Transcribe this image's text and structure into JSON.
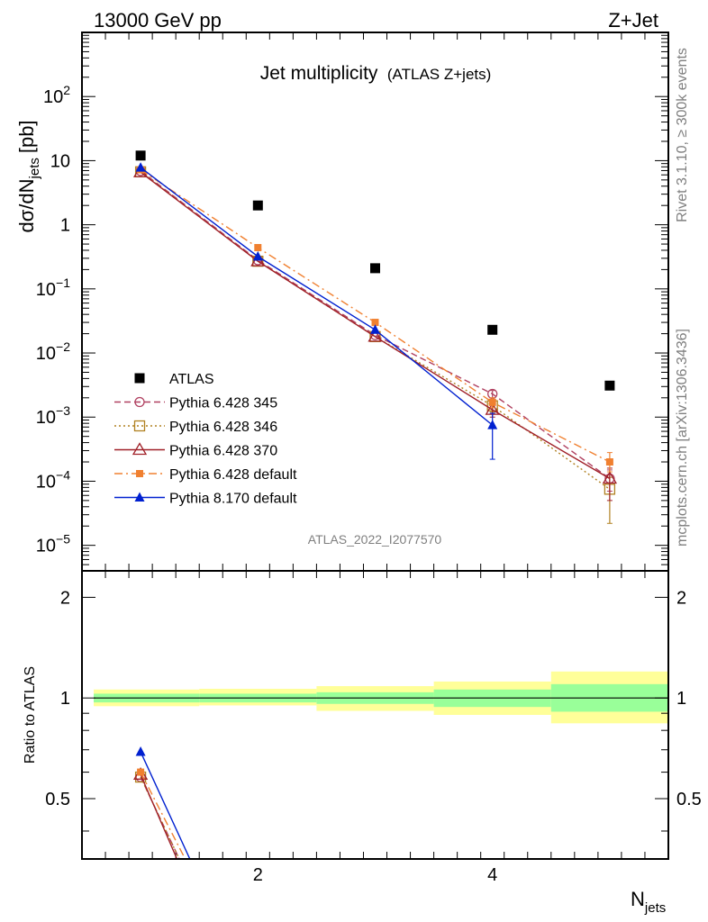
{
  "header": {
    "energy_label": "13000 GeV pp",
    "process_label": "Z+Jet"
  },
  "side_labels": {
    "rivet": "Rivet 3.1.10, ≥ 300k events",
    "mcplots": "mcplots.cern.ch [arXiv:1306.3436]"
  },
  "watermark": "ATLAS_2022_I2077570",
  "chart_data": [
    {
      "type": "scatter",
      "title": "Jet multiplicity",
      "subtitle": "(ATLAS Z+jets)",
      "ylabel": "dσ/dN",
      "ylabel_sub": "jets",
      "ylabel_unit": "[pb]",
      "xlabel": "N",
      "xlabel_sub": "jets",
      "xlim": [
        0.5,
        5.5
      ],
      "ylim": [
        4e-06,
        1000
      ],
      "yscale": "log",
      "y_ticks": [
        {
          "v": 1e-05,
          "b": "10",
          "e": "−5"
        },
        {
          "v": 0.0001,
          "b": "10",
          "e": "−4"
        },
        {
          "v": 0.001,
          "b": "10",
          "e": "−3"
        },
        {
          "v": 0.01,
          "b": "10",
          "e": "−2"
        },
        {
          "v": 0.1,
          "b": "10",
          "e": "−1"
        },
        {
          "v": 1,
          "b": "1",
          "e": ""
        },
        {
          "v": 10,
          "b": "10",
          "e": ""
        },
        {
          "v": 100,
          "b": "10",
          "e": "2"
        }
      ],
      "legend_position": "lower-left",
      "x": [
        1,
        2,
        3,
        4,
        5
      ],
      "series": [
        {
          "name": "ATLAS",
          "color": "#000000",
          "marker": "square-filled",
          "line": "none",
          "values": [
            12.0,
            2.0,
            0.21,
            0.023,
            0.0031
          ],
          "err_low": [
            0,
            0,
            0,
            0,
            0
          ],
          "err_high": [
            0,
            0,
            0,
            0,
            0
          ]
        },
        {
          "name": "Pythia 6.428 345",
          "color": "#b04060",
          "marker": "circle-open",
          "line": "dashed",
          "values": [
            6.9,
            0.28,
            0.019,
            0.0023,
            0.00011
          ],
          "err_low": [
            0,
            0,
            0,
            0.0003,
            4e-05
          ],
          "err_high": [
            0,
            0,
            0,
            0.0003,
            4e-05
          ]
        },
        {
          "name": "Pythia 6.428 346",
          "color": "#b08020",
          "marker": "square-open",
          "line": "dotted",
          "values": [
            6.7,
            0.27,
            0.018,
            0.0015,
            7.5e-05
          ],
          "err_low": [
            0,
            0,
            0,
            0.0003,
            5.3e-05
          ],
          "err_high": [
            0,
            0,
            0,
            0.0003,
            4e-05
          ]
        },
        {
          "name": "Pythia 6.428 370",
          "color": "#a02028",
          "marker": "triangle-open",
          "line": "solid",
          "values": [
            6.6,
            0.27,
            0.018,
            0.0013,
            0.00011
          ],
          "err_low": [
            0,
            0,
            0,
            0.0003,
            6e-05
          ],
          "err_high": [
            0,
            0,
            0,
            0.0003,
            5e-05
          ]
        },
        {
          "name": "Pythia 6.428 default",
          "color": "#f08030",
          "marker": "square-filled-small",
          "line": "dashdot",
          "values": [
            7.2,
            0.44,
            0.03,
            0.0017,
            0.0002
          ],
          "err_low": [
            0,
            0,
            0,
            0.0003,
            6e-05
          ],
          "err_high": [
            0,
            0,
            0,
            0.0003,
            8e-05
          ]
        },
        {
          "name": "Pythia 8.170 default",
          "color": "#0020d0",
          "marker": "triangle-filled",
          "line": "solid",
          "values": [
            7.8,
            0.32,
            0.023,
            0.00075,
            null
          ],
          "err_low": [
            0,
            0,
            0,
            0.00053,
            0
          ],
          "err_high": [
            0,
            0,
            0,
            0.0004,
            0
          ]
        }
      ]
    },
    {
      "type": "line",
      "ylabel": "Ratio to ATLAS",
      "xlim": [
        0.5,
        5.5
      ],
      "ylim": [
        0.33,
        2.4
      ],
      "yscale": "log",
      "y_ticks": [
        {
          "v": 0.5,
          "label": "0.5"
        },
        {
          "v": 1,
          "label": "1"
        },
        {
          "v": 2,
          "label": "2"
        }
      ],
      "x_ticks": [
        {
          "v": 2,
          "label": "2"
        },
        {
          "v": 4,
          "label": "4"
        }
      ],
      "bands": {
        "bins": [
          [
            0.6,
            1.5
          ],
          [
            1.5,
            2.5
          ],
          [
            2.5,
            3.5
          ],
          [
            3.5,
            4.5
          ],
          [
            4.5,
            5.5
          ]
        ],
        "inner": [
          [
            0.97,
            1.03
          ],
          [
            0.97,
            1.03
          ],
          [
            0.96,
            1.04
          ],
          [
            0.94,
            1.06
          ],
          [
            0.91,
            1.1
          ]
        ],
        "outer": [
          [
            0.945,
            1.06
          ],
          [
            0.95,
            1.065
          ],
          [
            0.915,
            1.085
          ],
          [
            0.89,
            1.12
          ],
          [
            0.84,
            1.2
          ]
        ],
        "inner_color": "#99ff99",
        "outer_color": "#ffff99"
      },
      "series": [
        {
          "name": "Pythia 6.428 345",
          "color": "#b04060",
          "line": "dashed",
          "x": [
            1,
            1.33
          ],
          "values": [
            0.58,
            0.33
          ]
        },
        {
          "name": "Pythia 6.428 346",
          "color": "#b08020",
          "line": "dotted",
          "x": [
            1,
            1.33
          ],
          "values": [
            0.58,
            0.33
          ]
        },
        {
          "name": "Pythia 6.428 370",
          "color": "#a02028",
          "line": "solid",
          "x": [
            1,
            1.31
          ],
          "values": [
            0.59,
            0.33
          ]
        },
        {
          "name": "Pythia 6.428 default",
          "color": "#f08030",
          "line": "dashdot",
          "x": [
            1,
            1.38
          ],
          "values": [
            0.6,
            0.33
          ]
        },
        {
          "name": "Pythia 8.170 default",
          "color": "#0020d0",
          "line": "solid",
          "x": [
            1,
            1.42
          ],
          "values": [
            0.69,
            0.33
          ]
        }
      ]
    }
  ]
}
